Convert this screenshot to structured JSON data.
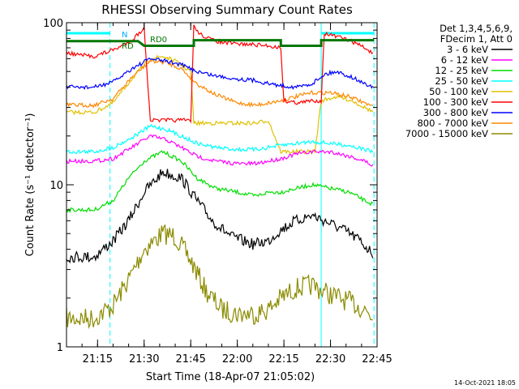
{
  "chart_data": {
    "type": "line",
    "title": "RHESSI Observing Summary Count Rates",
    "xlabel": "Start Time (18-Apr-07 21:05:02)",
    "ylabel": "Count Rate (s⁻¹ detector⁻¹)",
    "x_range": [
      "21:05",
      "22:45"
    ],
    "y_range": [
      1,
      100
    ],
    "y_scale": "log",
    "x_ticks": [
      "21:15",
      "21:30",
      "21:45",
      "22:00",
      "22:15",
      "22:30",
      "22:45"
    ],
    "y_ticks": [
      "1",
      "10",
      "100"
    ],
    "legend_header": [
      "Det 1,3,4,5,6,9,",
      "FDecim 1, Att 0"
    ],
    "legend_position": "right",
    "footer": "14-Oct-2021 18:05",
    "annotations": {
      "night_label": "N",
      "rd_label_1": "RD",
      "rd_label_2": "RD0"
    },
    "series": [
      {
        "name": "3 - 6 keV",
        "color": "#000000",
        "points": [
          [
            "21:05",
            3.6
          ],
          [
            "21:14",
            3.6
          ],
          [
            "21:20",
            4.5
          ],
          [
            "21:25",
            6
          ],
          [
            "21:30",
            9
          ],
          [
            "21:36",
            12
          ],
          [
            "21:42",
            11
          ],
          [
            "21:47",
            8
          ],
          [
            "21:52",
            6
          ],
          [
            "21:58",
            4.8
          ],
          [
            "22:05",
            4.3
          ],
          [
            "22:10",
            4.5
          ],
          [
            "22:13",
            5.1
          ],
          [
            "22:18",
            5.9
          ],
          [
            "22:24",
            6.5
          ],
          [
            "22:28",
            6
          ],
          [
            "22:34",
            5.3
          ],
          [
            "22:39",
            4.6
          ],
          [
            "22:44",
            3.7
          ]
        ]
      },
      {
        "name": "6 - 12 keV",
        "color": "#ff00ff",
        "points": [
          [
            "21:05",
            14
          ],
          [
            "21:14",
            14
          ],
          [
            "21:20",
            14.5
          ],
          [
            "21:26",
            17
          ],
          [
            "21:32",
            20
          ],
          [
            "21:37",
            19
          ],
          [
            "21:42",
            17
          ],
          [
            "21:47",
            15
          ],
          [
            "21:53",
            14
          ],
          [
            "22:00",
            13.5
          ],
          [
            "22:06",
            13.5
          ],
          [
            "22:10",
            14
          ],
          [
            "22:14",
            14.5
          ],
          [
            "22:19",
            15.5
          ],
          [
            "22:24",
            16
          ],
          [
            "22:30",
            16
          ],
          [
            "22:36",
            15
          ],
          [
            "22:41",
            14
          ],
          [
            "22:44",
            13
          ]
        ]
      },
      {
        "name": "12 - 25 keV",
        "color": "#00dd00",
        "points": [
          [
            "21:05",
            7
          ],
          [
            "21:14",
            7
          ],
          [
            "21:20",
            8
          ],
          [
            "21:25",
            11
          ],
          [
            "21:30",
            14
          ],
          [
            "21:36",
            16
          ],
          [
            "21:42",
            14
          ],
          [
            "21:47",
            11
          ],
          [
            "21:53",
            9.5
          ],
          [
            "22:00",
            9
          ],
          [
            "22:06",
            8.5
          ],
          [
            "22:10",
            9
          ],
          [
            "22:14",
            9
          ],
          [
            "22:19",
            9.5
          ],
          [
            "22:24",
            10
          ],
          [
            "22:30",
            9.5
          ],
          [
            "22:36",
            9
          ],
          [
            "22:41",
            8
          ],
          [
            "22:44",
            7.5
          ]
        ]
      },
      {
        "name": "25 - 50 keV",
        "color": "#00ffff",
        "points": [
          [
            "21:05",
            16
          ],
          [
            "21:14",
            16
          ],
          [
            "21:20",
            17
          ],
          [
            "21:26",
            19.5
          ],
          [
            "21:32",
            23
          ],
          [
            "21:37",
            22
          ],
          [
            "21:42",
            20
          ],
          [
            "21:47",
            18
          ],
          [
            "21:53",
            17
          ],
          [
            "22:00",
            16.5
          ],
          [
            "22:06",
            16.5
          ],
          [
            "22:10",
            17
          ],
          [
            "22:14",
            17.5
          ],
          [
            "22:19",
            18
          ],
          [
            "22:24",
            18.5
          ],
          [
            "22:30",
            18
          ],
          [
            "22:36",
            17.5
          ],
          [
            "22:41",
            16.5
          ],
          [
            "22:44",
            16
          ]
        ]
      },
      {
        "name": "50 - 100 keV",
        "color": "#e0c000",
        "points": [
          [
            "21:05",
            28
          ],
          [
            "21:14",
            28
          ],
          [
            "21:20",
            32
          ],
          [
            "21:26",
            45
          ],
          [
            "21:32",
            60
          ],
          [
            "21:36",
            62
          ],
          [
            "21:40",
            58
          ],
          [
            "21:45",
            50
          ],
          [
            "21:46",
            24
          ],
          [
            "21:51",
            24
          ],
          [
            "21:55",
            24
          ],
          [
            "22:00",
            24
          ],
          [
            "22:06",
            24
          ],
          [
            "22:10",
            25
          ],
          [
            "22:14",
            16
          ],
          [
            "22:18",
            16
          ],
          [
            "22:22",
            16
          ],
          [
            "22:25",
            16
          ],
          [
            "22:27",
            33
          ],
          [
            "22:32",
            35
          ],
          [
            "22:37",
            33
          ],
          [
            "22:41",
            30
          ],
          [
            "22:44",
            28
          ]
        ]
      },
      {
        "name": "100 - 300 keV",
        "color": "#ff0000",
        "points": [
          [
            "21:05",
            65
          ],
          [
            "21:10",
            63
          ],
          [
            "21:14",
            62
          ],
          [
            "21:20",
            68
          ],
          [
            "21:23",
            72
          ],
          [
            "21:26",
            78
          ],
          [
            "21:28",
            85
          ],
          [
            "21:30",
            92
          ],
          [
            "21:32",
            25
          ],
          [
            "21:36",
            25
          ],
          [
            "21:40",
            25
          ],
          [
            "21:45",
            25
          ],
          [
            "21:46",
            95
          ],
          [
            "21:48",
            85
          ],
          [
            "21:52",
            78
          ],
          [
            "21:56",
            75
          ],
          [
            "22:00",
            74
          ],
          [
            "22:06",
            73
          ],
          [
            "22:10",
            72
          ],
          [
            "22:14",
            70
          ],
          [
            "22:15",
            33
          ],
          [
            "22:20",
            32
          ],
          [
            "22:24",
            33
          ],
          [
            "22:27",
            33
          ],
          [
            "22:28",
            86
          ],
          [
            "22:32",
            82
          ],
          [
            "22:36",
            78
          ],
          [
            "22:40",
            72
          ],
          [
            "22:44",
            64
          ]
        ]
      },
      {
        "name": "300 - 800 keV",
        "color": "#0000ff",
        "points": [
          [
            "21:05",
            40
          ],
          [
            "21:14",
            40
          ],
          [
            "21:20",
            43
          ],
          [
            "21:26",
            52
          ],
          [
            "21:32",
            60
          ],
          [
            "21:37",
            58
          ],
          [
            "21:42",
            55
          ],
          [
            "21:47",
            50
          ],
          [
            "21:53",
            47
          ],
          [
            "22:00",
            45
          ],
          [
            "22:06",
            44
          ],
          [
            "22:10",
            42
          ],
          [
            "22:14",
            41
          ],
          [
            "22:19",
            40
          ],
          [
            "22:24",
            42
          ],
          [
            "22:28",
            48
          ],
          [
            "22:32",
            50
          ],
          [
            "22:37",
            46
          ],
          [
            "22:41",
            42
          ],
          [
            "22:44",
            40
          ]
        ]
      },
      {
        "name": "800 - 7000 keV",
        "color": "#ff8800",
        "points": [
          [
            "21:05",
            31
          ],
          [
            "21:14",
            31
          ],
          [
            "21:20",
            34
          ],
          [
            "21:26",
            46
          ],
          [
            "21:32",
            58
          ],
          [
            "21:37",
            57
          ],
          [
            "21:42",
            52
          ],
          [
            "21:47",
            42
          ],
          [
            "21:53",
            36
          ],
          [
            "22:00",
            32
          ],
          [
            "22:06",
            31
          ],
          [
            "22:10",
            32
          ],
          [
            "22:14",
            33
          ],
          [
            "22:19",
            35
          ],
          [
            "22:24",
            37
          ],
          [
            "22:30",
            37
          ],
          [
            "22:36",
            35
          ],
          [
            "22:41",
            32
          ],
          [
            "22:44",
            30
          ]
        ]
      },
      {
        "name": "7000 - 15000 keV",
        "color": "#8b8b00",
        "points": [
          [
            "21:05",
            1.5
          ],
          [
            "21:14",
            1.5
          ],
          [
            "21:20",
            1.8
          ],
          [
            "21:25",
            2.6
          ],
          [
            "21:30",
            4
          ],
          [
            "21:36",
            5
          ],
          [
            "21:40",
            4.8
          ],
          [
            "21:45",
            3.4
          ],
          [
            "21:50",
            2.2
          ],
          [
            "21:55",
            1.7
          ],
          [
            "22:00",
            1.6
          ],
          [
            "22:06",
            1.6
          ],
          [
            "22:10",
            1.7
          ],
          [
            "22:14",
            2
          ],
          [
            "22:19",
            2.3
          ],
          [
            "22:24",
            2.4
          ],
          [
            "22:30",
            2.1
          ],
          [
            "22:36",
            1.9
          ],
          [
            "22:41",
            1.7
          ],
          [
            "22:44",
            1.5
          ]
        ]
      }
    ],
    "attenuator_state": {
      "color": "#007700",
      "points": [
        [
          "21:05",
          77
        ],
        [
          "21:28",
          77
        ],
        [
          "21:30",
          72
        ],
        [
          "21:46",
          72
        ],
        [
          "21:46",
          78
        ],
        [
          "22:14",
          78
        ],
        [
          "22:14",
          72
        ],
        [
          "22:27",
          72
        ],
        [
          "22:27",
          78
        ],
        [
          "22:44",
          78
        ]
      ]
    },
    "night_intervals": [
      [
        "21:05",
        "21:19"
      ],
      [
        "22:27",
        "22:44"
      ]
    ]
  }
}
